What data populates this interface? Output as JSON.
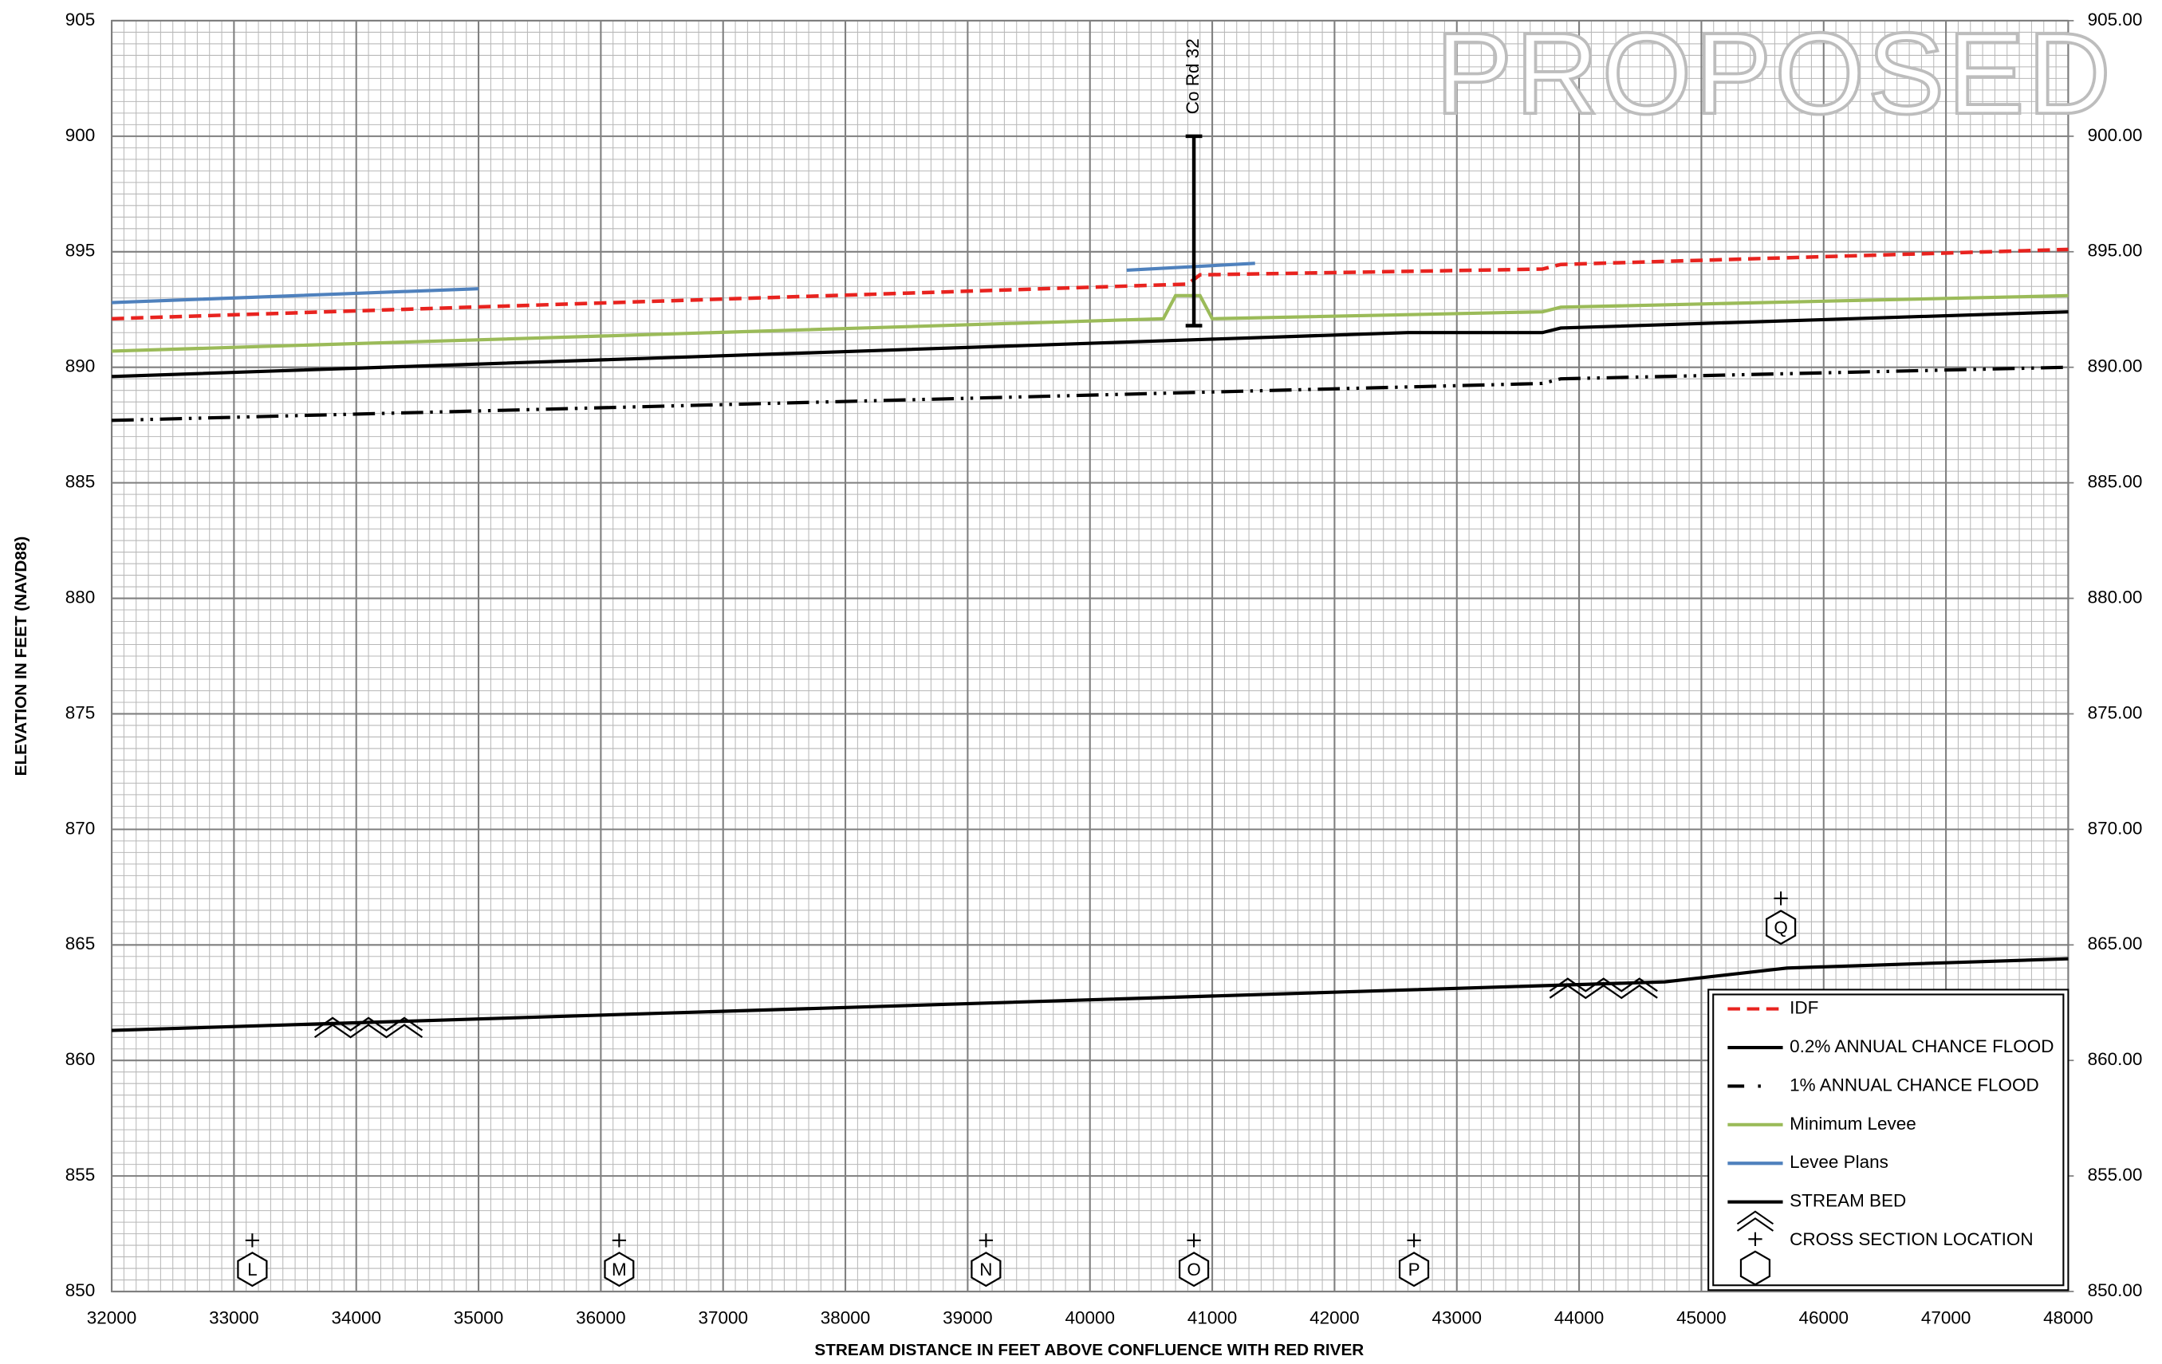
{
  "chart_data": {
    "type": "line",
    "watermark": "PROPOSED",
    "xlabel": "STREAM DISTANCE IN FEET ABOVE CONFLUENCE WITH RED RIVER",
    "ylabel": "ELEVATION IN FEET (NAVD88)",
    "xlim": [
      32000,
      48000
    ],
    "xticks": [
      32000,
      33000,
      34000,
      35000,
      36000,
      37000,
      38000,
      39000,
      40000,
      41000,
      42000,
      43000,
      44000,
      45000,
      46000,
      47000,
      48000
    ],
    "ylim": [
      850,
      905
    ],
    "yticks": [
      850,
      855,
      860,
      865,
      870,
      875,
      880,
      885,
      890,
      895,
      900,
      905
    ],
    "y2lim": [
      850,
      905
    ],
    "y2ticks": [
      {
        "value": 850,
        "label": "850.00"
      },
      {
        "value": 855,
        "label": "855.00"
      },
      {
        "value": 860,
        "label": "860.00"
      },
      {
        "value": 865,
        "label": "865.00"
      },
      {
        "value": 870,
        "label": "870.00"
      },
      {
        "value": 875,
        "label": "875.00"
      },
      {
        "value": 880,
        "label": "880.00"
      },
      {
        "value": 885,
        "label": "885.00"
      },
      {
        "value": 890,
        "label": "890.00"
      },
      {
        "value": 895,
        "label": "895.00"
      },
      {
        "value": 900,
        "label": "900.00"
      },
      {
        "value": 905,
        "label": "905.00"
      }
    ],
    "grid": true,
    "minor_grid": {
      "x_step": 100,
      "y_step": 0.5
    },
    "legend": "lower right",
    "series": [
      {
        "name": "IDF",
        "color": "#e8231f",
        "style": "dashed",
        "x": [
          32000,
          40800,
          40900,
          43700,
          43850,
          48000
        ],
        "values": [
          892.1,
          893.6,
          894.0,
          894.25,
          894.45,
          895.1
        ]
      },
      {
        "name": "0.2% ANNUAL CHANCE FLOOD",
        "color": "#000000",
        "style": "solid",
        "x": [
          32000,
          40900,
          42600,
          43700,
          43850,
          48000
        ],
        "values": [
          889.6,
          891.2,
          891.5,
          891.5,
          891.7,
          892.4
        ]
      },
      {
        "name": "1% ANNUAL CHANCE FLOOD",
        "color": "#000000",
        "style": "dashdotdot",
        "x": [
          32000,
          43700,
          43850,
          48000
        ],
        "values": [
          887.7,
          889.3,
          889.5,
          890.0
        ]
      },
      {
        "name": "Minimum Levee",
        "color": "#9bbb59",
        "style": "solid",
        "x": [
          32000,
          40600,
          40700,
          40900,
          41000,
          43700,
          43850,
          48000
        ],
        "values": [
          890.7,
          892.1,
          893.1,
          893.1,
          892.1,
          892.4,
          892.6,
          893.1
        ]
      },
      {
        "name": "Levee Plans",
        "color": "#4f81bd",
        "style": "solid",
        "x": [
          32000,
          35000,
          null,
          40300,
          41350
        ],
        "values": [
          892.8,
          893.4,
          null,
          894.2,
          894.5
        ]
      },
      {
        "name": "STREAM BED",
        "color": "#000000",
        "style": "solid",
        "x": [
          32000,
          44700,
          45700,
          48000
        ],
        "values": [
          861.3,
          863.4,
          864.0,
          864.4
        ]
      }
    ],
    "stream_bed_markers": {
      "x": [
        34100,
        44200
      ],
      "values": [
        861.6,
        863.3
      ]
    },
    "cross_sections": {
      "name": "CROSS SECTION LOCATION",
      "labels": [
        "L",
        "M",
        "N",
        "O",
        "P",
        "Q"
      ],
      "x": [
        33150,
        36150,
        39150,
        40850,
        42650,
        45650
      ],
      "values": [
        851.2,
        851.2,
        851.2,
        851.2,
        851.2,
        866.0
      ]
    },
    "annotation": {
      "text": "Co Rd 32",
      "x": 40850,
      "low": 891.8,
      "high": 900
    }
  }
}
